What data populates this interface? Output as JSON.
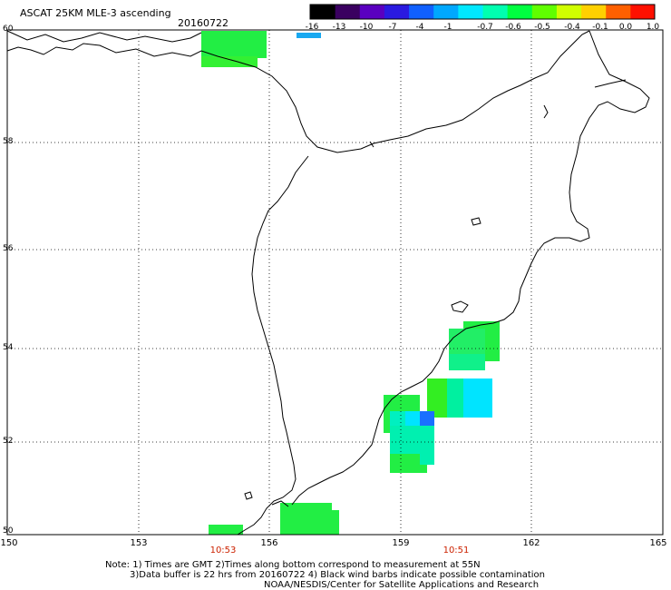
{
  "title": "ASCAT 25KM MLE-3 ascending",
  "date": "20160722",
  "colorbar": {
    "labels": [
      "-16",
      "-13",
      "-10",
      "-7",
      "-4",
      "-1",
      "-0.7",
      "-0.6",
      "-0.5",
      "-0.4",
      "-0.1",
      "0.0",
      "1.0"
    ],
    "colors": [
      "#000000",
      "#3a0060",
      "#5a00c0",
      "#2a1ae0",
      "#1060ff",
      "#00a8ff",
      "#00e8ff",
      "#00ffb0",
      "#00ff40",
      "#60ff00",
      "#d0ff00",
      "#ffd000",
      "#ff6000",
      "#ff1000"
    ]
  },
  "axes": {
    "lat_labels": [
      "60",
      "58",
      "56",
      "54",
      "52",
      "50"
    ],
    "lon_labels": [
      "150",
      "153",
      "156",
      "159",
      "162",
      "165"
    ]
  },
  "times": [
    "10:53",
    "10:51"
  ],
  "notes": {
    "line1": "Note: 1) Times are GMT 2)Times along bottom correspond to measurement at 55N",
    "line2": "3)Data buffer is 22 hrs from 20160722 4) Black wind barbs indicate possible contamination",
    "line3": "NOAA/NESDIS/Center for Satellite Applications and Research"
  },
  "colors": {
    "green": "#22ee44",
    "bright_green": "#33ff22",
    "aqua_green": "#00f0a0",
    "cyan": "#00e4ff",
    "blue": "#1a70ff",
    "sky": "#18a8f0"
  }
}
